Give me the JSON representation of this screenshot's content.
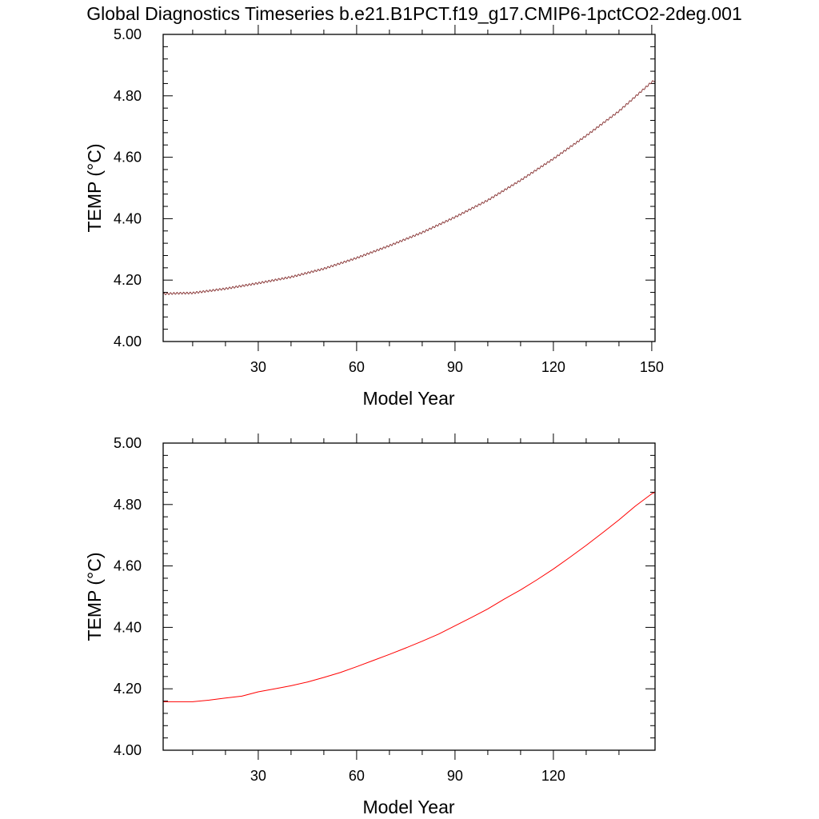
{
  "figure": {
    "title": "Global Diagnostics Timeseries b.e21.B1PCT.f19_g17.CMIP6-1pctCO2-2deg.001"
  },
  "chart_data": [
    {
      "type": "line",
      "title": "",
      "xlabel": "Model Year",
      "ylabel": "TEMP (°C)",
      "xlim": [
        1,
        151
      ],
      "ylim": [
        4.0,
        5.0
      ],
      "x_ticks": [
        "30",
        "60",
        "90",
        "120",
        "150"
      ],
      "y_ticks": [
        "4.00",
        "4.20",
        "4.40",
        "4.60",
        "4.80",
        "5.00"
      ],
      "series": [
        {
          "data_kind": "monthly",
          "color": "#8b3a3a",
          "seasonal_amplitude": 0.003,
          "x": [
            1,
            5,
            10,
            20,
            30,
            40,
            50,
            60,
            70,
            80,
            90,
            100,
            110,
            120,
            130,
            140,
            150,
            151
          ],
          "values": [
            4.155,
            4.157,
            4.158,
            4.172,
            4.19,
            4.21,
            4.237,
            4.272,
            4.312,
            4.355,
            4.405,
            4.46,
            4.525,
            4.595,
            4.67,
            4.75,
            4.845,
            4.85
          ]
        }
      ]
    },
    {
      "type": "line",
      "title": "",
      "xlabel": "Model Year",
      "ylabel": "TEMP (°C)",
      "xlim": [
        1,
        151
      ],
      "ylim": [
        4.0,
        5.0
      ],
      "x_ticks": [
        "30",
        "60",
        "90",
        "120"
      ],
      "y_ticks": [
        "4.00",
        "4.20",
        "4.40",
        "4.60",
        "4.80",
        "5.00"
      ],
      "series": [
        {
          "data_kind": "annual",
          "color": "#ff0000",
          "x": [
            1,
            5,
            10,
            15,
            20,
            25,
            30,
            35,
            40,
            45,
            50,
            55,
            60,
            65,
            70,
            75,
            80,
            85,
            90,
            95,
            100,
            105,
            110,
            115,
            120,
            125,
            130,
            135,
            140,
            145,
            150,
            151
          ],
          "values": [
            4.158,
            4.158,
            4.158,
            4.163,
            4.17,
            4.176,
            4.19,
            4.2,
            4.21,
            4.222,
            4.237,
            4.253,
            4.272,
            4.292,
            4.312,
            4.333,
            4.355,
            4.378,
            4.405,
            4.432,
            4.46,
            4.492,
            4.522,
            4.555,
            4.59,
            4.628,
            4.667,
            4.708,
            4.75,
            4.795,
            4.835,
            4.84
          ]
        }
      ]
    }
  ]
}
